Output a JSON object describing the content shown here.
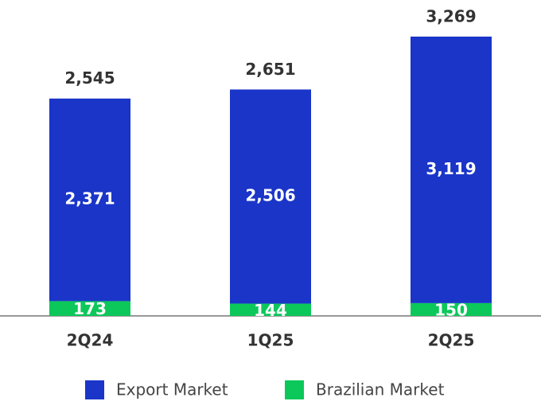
{
  "chart_data": {
    "type": "stacked-bar",
    "categories": [
      "2Q24",
      "1Q25",
      "2Q25"
    ],
    "series": [
      {
        "name": "Brazilian Market",
        "color": "#0cc85a",
        "values": [
          173,
          144,
          150
        ]
      },
      {
        "name": "Export Market",
        "color": "#1a35c8",
        "values": [
          2371,
          2506,
          3119
        ],
        "value_labels": [
          "2,371",
          "2,506",
          "3,119"
        ]
      }
    ],
    "totals": {
      "values": [
        2545,
        2651,
        3269
      ],
      "value_labels": [
        "2,545",
        "2,651",
        "3,269"
      ]
    },
    "legend_order": [
      1,
      0
    ]
  }
}
